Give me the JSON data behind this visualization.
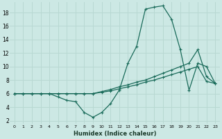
{
  "xlabel": "Humidex (Indice chaleur)",
  "bg_color": "#cce8e4",
  "grid_color": "#b8d8d2",
  "line_color": "#1a6b5a",
  "xlim": [
    -0.5,
    23.5
  ],
  "ylim": [
    1.5,
    19.5
  ],
  "xticks": [
    0,
    1,
    2,
    3,
    4,
    5,
    6,
    7,
    8,
    9,
    10,
    11,
    12,
    13,
    14,
    15,
    16,
    17,
    18,
    19,
    20,
    21,
    22,
    23
  ],
  "yticks": [
    2,
    4,
    6,
    8,
    10,
    12,
    14,
    16,
    18
  ],
  "line1_x": [
    0,
    1,
    2,
    3,
    4,
    5,
    6,
    7,
    8,
    9,
    10,
    11,
    12,
    13,
    14,
    15,
    16,
    17,
    18,
    19,
    20,
    21,
    22,
    23
  ],
  "line1_y": [
    6,
    6,
    6,
    6,
    6,
    5.5,
    5,
    4.8,
    3.2,
    2.5,
    3.2,
    4.5,
    6.5,
    10.5,
    13,
    18.5,
    18.8,
    19,
    17,
    12.5,
    6.5,
    10.5,
    10.0,
    7.5
  ],
  "line2_x": [
    0,
    1,
    2,
    3,
    4,
    5,
    6,
    7,
    8,
    9,
    10,
    11,
    12,
    13,
    14,
    15,
    16,
    17,
    18,
    19,
    20,
    21,
    22,
    23
  ],
  "line2_y": [
    6,
    6,
    6,
    6,
    6,
    6,
    6,
    6,
    6,
    6,
    6.3,
    6.6,
    7.0,
    7.3,
    7.7,
    8.0,
    8.5,
    9.0,
    9.5,
    10.0,
    10.5,
    12.5,
    8.5,
    7.5
  ],
  "line3_x": [
    0,
    1,
    2,
    3,
    4,
    5,
    6,
    7,
    8,
    9,
    10,
    11,
    12,
    13,
    14,
    15,
    16,
    17,
    18,
    19,
    20,
    21,
    22,
    23
  ],
  "line3_y": [
    6,
    6,
    6,
    6,
    6,
    6,
    6,
    6,
    6,
    6,
    6.2,
    6.4,
    6.7,
    7.0,
    7.3,
    7.7,
    8.0,
    8.4,
    8.8,
    9.2,
    9.6,
    10.0,
    7.8,
    7.5
  ]
}
